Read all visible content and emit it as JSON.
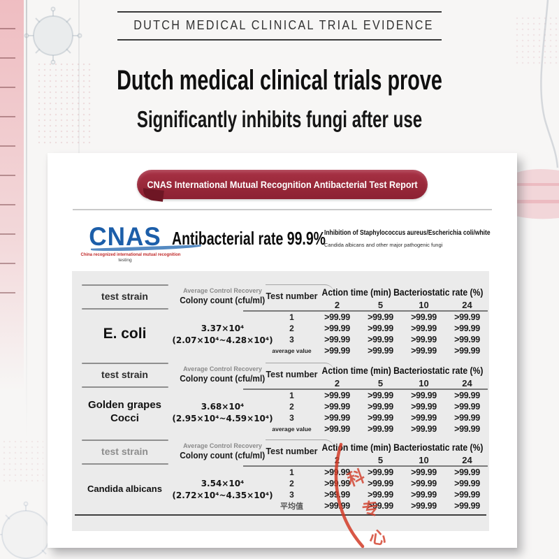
{
  "banner": {
    "title": "DUTCH MEDICAL CLINICAL TRIAL EVIDENCE"
  },
  "headline": "Dutch medical clinical trials prove",
  "subheadline": "Significantly inhibits fungi after use",
  "report_card": {
    "pill_label": "CNAS International Mutual Recognition Antibacterial Test Report",
    "cnas_logo": "CNAS",
    "cnas_tagline": "China recognized international mutual recognition",
    "cnas_tagline2": "testing",
    "claim": "Antibacterial rate 99.9%",
    "scope_line1": "Inhibition of Staphylococcus aureus/Escherichia coli/white",
    "scope_line2": "Candida albicans and other major pathogenic fungi"
  },
  "table": {
    "header": {
      "strain": "test strain",
      "recovery_line1": "Average Control Recovery",
      "recovery_line2": "Colony count (cfu/ml)",
      "test_number": "Test number",
      "action": "Action time (min) Bacteriostatic rate (%)",
      "times": [
        "2",
        "5",
        "10",
        "24"
      ]
    },
    "sections": [
      {
        "key": "e-coli",
        "strain_lines": [
          "E. coli"
        ],
        "count_avg": "3.37×10⁴",
        "count_range": "(2.07×10⁴~4.28×10⁴)",
        "rows": [
          {
            "label": "1",
            "values": [
              ">99.99",
              ">99.99",
              ">99.99",
              ">99.99"
            ]
          },
          {
            "label": "2",
            "values": [
              ">99.99",
              ">99.99",
              ">99.99",
              ">99.99"
            ]
          },
          {
            "label": "3",
            "values": [
              ">99.99",
              ">99.99",
              ">99.99",
              ">99.99"
            ]
          },
          {
            "label": "average value",
            "values": [
              ">99.99",
              ">99.99",
              ">99.99",
              ">99.99"
            ]
          }
        ]
      },
      {
        "key": "golden-grapes-cocci",
        "strain_lines": [
          "Golden grapes",
          "Cocci"
        ],
        "count_avg": "3.68×10⁴",
        "count_range": "(2.95×10⁴~4.59×10⁴)",
        "rows": [
          {
            "label": "1",
            "values": [
              ">99.99",
              ">99.99",
              ">99.99",
              ">99.99"
            ]
          },
          {
            "label": "2",
            "values": [
              ">99.99",
              ">99.99",
              ">99.99",
              ">99.99"
            ]
          },
          {
            "label": "3",
            "values": [
              ">99.99",
              ">99.99",
              ">99.99",
              ">99.99"
            ]
          },
          {
            "label": "average value",
            "values": [
              ">99.99",
              ">99.99",
              ">99.99",
              ">99.99"
            ]
          }
        ]
      },
      {
        "key": "candida-albicans",
        "strain_lines": [
          "Candida albicans"
        ],
        "count_avg": "3.54×10⁴",
        "count_range": "(2.72×10⁴~4.35×10⁴)",
        "rows": [
          {
            "label": "1",
            "values": [
              ">99.99",
              ">99.99",
              ">99.99",
              ">99.99"
            ]
          },
          {
            "label": "2",
            "values": [
              ">99.99",
              ">99.99",
              ">99.99",
              ">99.99"
            ]
          },
          {
            "label": "3",
            "values": [
              ">99.99",
              ">99.99",
              ">99.99",
              ">99.99"
            ]
          },
          {
            "label": "平均值",
            "values": [
              ">99.99",
              ">99.99",
              ">99.99",
              ">99.99"
            ]
          }
        ]
      }
    ]
  },
  "stamp": {
    "characters": [
      "科",
      "专",
      "心"
    ],
    "color": "#d23b27"
  },
  "colors": {
    "pill_red": "#9b2a3b",
    "cnas_blue": "#1c5ea9",
    "panel_gray": "#ebebeb",
    "stamp_red": "#d23b27",
    "headline_black": "#0f0f0f"
  }
}
